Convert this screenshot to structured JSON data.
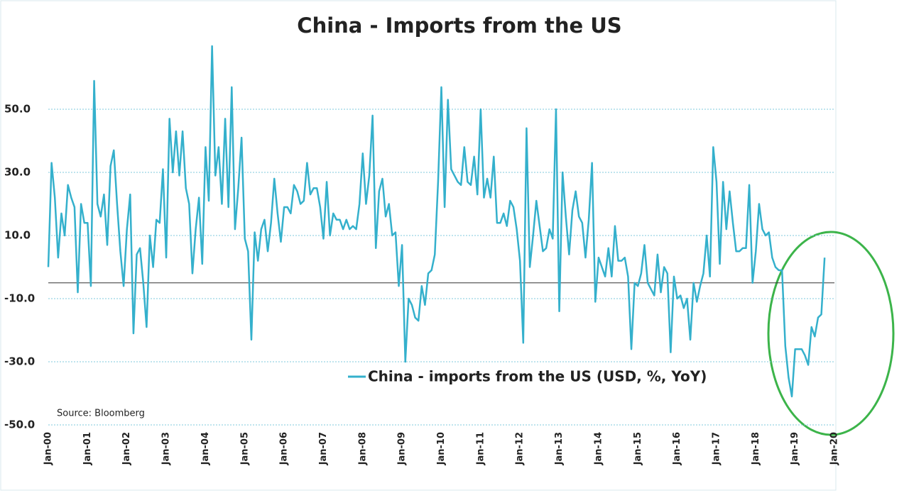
{
  "chart_data": {
    "type": "line",
    "title": "China - Imports from the US",
    "source": "Source: Bloomberg",
    "categories": [
      "Jan-00",
      null,
      null,
      null,
      null,
      null,
      null,
      null,
      null,
      null,
      null,
      null,
      "Jan-01",
      null,
      null,
      null,
      null,
      null,
      null,
      null,
      null,
      null,
      null,
      null,
      "Jan-02",
      null,
      null,
      null,
      null,
      null,
      null,
      null,
      null,
      null,
      null,
      null,
      "Jan-03",
      null,
      null,
      null,
      null,
      null,
      null,
      null,
      null,
      null,
      null,
      null,
      "Jan-04",
      null,
      null,
      null,
      null,
      null,
      null,
      null,
      null,
      null,
      null,
      null,
      "Jan-05",
      null,
      null,
      null,
      null,
      null,
      null,
      null,
      null,
      null,
      null,
      null,
      "Jan-06",
      null,
      null,
      null,
      null,
      null,
      null,
      null,
      null,
      null,
      null,
      null,
      "Jan-07",
      null,
      null,
      null,
      null,
      null,
      null,
      null,
      null,
      null,
      null,
      null,
      "Jan-08",
      null,
      null,
      null,
      null,
      null,
      null,
      null,
      null,
      null,
      null,
      null,
      "Jan-09",
      null,
      null,
      null,
      null,
      null,
      null,
      null,
      null,
      null,
      null,
      null,
      "Jan-10",
      null,
      null,
      null,
      null,
      null,
      null,
      null,
      null,
      null,
      null,
      null,
      "Jan-11",
      null,
      null,
      null,
      null,
      null,
      null,
      null,
      null,
      null,
      null,
      null,
      "Jan-12",
      null,
      null,
      null,
      null,
      null,
      null,
      null,
      null,
      null,
      null,
      null,
      "Jan-13",
      null,
      null,
      null,
      null,
      null,
      null,
      null,
      null,
      null,
      null,
      null,
      "Jan-14",
      null,
      null,
      null,
      null,
      null,
      null,
      null,
      null,
      null,
      null,
      null,
      "Jan-15",
      null,
      null,
      null,
      null,
      null,
      null,
      null,
      null,
      null,
      null,
      null,
      "Jan-16",
      null,
      null,
      null,
      null,
      null,
      null,
      null,
      null,
      null,
      null,
      null,
      "Jan-17",
      null,
      null,
      null,
      null,
      null,
      null,
      null,
      null,
      null,
      null,
      null,
      "Jan-18",
      null,
      null,
      null,
      null,
      null,
      null,
      null,
      null,
      null,
      null,
      null,
      "Jan-19",
      null,
      null,
      null,
      null,
      null,
      null,
      null,
      null,
      null,
      null,
      null,
      "Jan-20"
    ],
    "series": [
      {
        "name": "China - imports from the US (USD, %, YoY)",
        "color": "#34b0cc",
        "values": [
          0,
          33,
          22,
          3,
          17,
          10,
          26,
          22,
          19,
          -8,
          20,
          14,
          14,
          -6,
          59,
          20,
          16,
          23,
          7,
          32,
          37,
          20,
          5,
          -6,
          12,
          23,
          -21,
          4,
          6,
          -5,
          -19,
          10,
          0,
          15,
          14,
          31,
          3,
          47,
          30,
          43,
          29,
          43,
          25,
          20,
          -2,
          12,
          22,
          1,
          38,
          21,
          70,
          29,
          38,
          20,
          47,
          19,
          57,
          12,
          25,
          41,
          9,
          5,
          -23,
          11,
          2,
          12,
          15,
          5,
          14,
          28,
          17,
          8,
          19,
          19,
          17,
          26,
          24,
          20,
          21,
          33,
          23,
          25,
          25,
          19,
          9,
          27,
          10,
          17,
          15,
          15,
          12,
          15,
          12,
          13,
          12,
          20,
          36,
          20,
          29,
          48,
          6,
          24,
          28,
          16,
          20,
          10,
          11,
          -6,
          7,
          -30,
          -10,
          -12,
          -16,
          -17,
          -6,
          -12,
          -2,
          -1,
          4,
          27,
          57,
          19,
          53,
          31,
          29,
          27,
          26,
          38,
          27,
          26,
          35,
          23,
          50,
          22,
          28,
          22,
          35,
          14,
          14,
          17,
          13,
          21,
          19,
          12,
          2,
          -24,
          44,
          0,
          10,
          21,
          13,
          5,
          6,
          12,
          9,
          50,
          -14,
          30,
          16,
          4,
          18,
          24,
          16,
          14,
          3,
          15,
          33,
          -11,
          3,
          0,
          -3,
          6,
          -3,
          13,
          2,
          2,
          3,
          -3,
          -26,
          -5,
          -6,
          -2,
          7,
          -5,
          -7,
          -9,
          4,
          -8,
          0,
          -2,
          -27,
          -3,
          -10,
          -9,
          -13,
          -10,
          -23,
          -5,
          -11,
          -6,
          -2,
          10,
          -3,
          38,
          27,
          1,
          27,
          12,
          24,
          14,
          5,
          5,
          6,
          6,
          26,
          -5,
          5,
          20,
          12,
          10,
          11,
          3,
          0,
          -1,
          -1,
          -25,
          -35,
          -41,
          -26,
          -26,
          -26,
          -28,
          -31,
          -19,
          -22,
          -16,
          -15,
          3,
          null,
          null,
          null
        ]
      }
    ],
    "ylim": [
      -50,
      70
    ],
    "yticks": [
      {
        "value": 50,
        "label": "50.0"
      },
      {
        "value": 30,
        "label": "30.0"
      },
      {
        "value": 10,
        "label": "10.0"
      },
      {
        "value": -10,
        "label": "-10.0"
      },
      {
        "value": -30,
        "label": "-30.0"
      },
      {
        "value": -50,
        "label": "-50.0"
      }
    ],
    "reference_line": -5,
    "grid": true
  }
}
